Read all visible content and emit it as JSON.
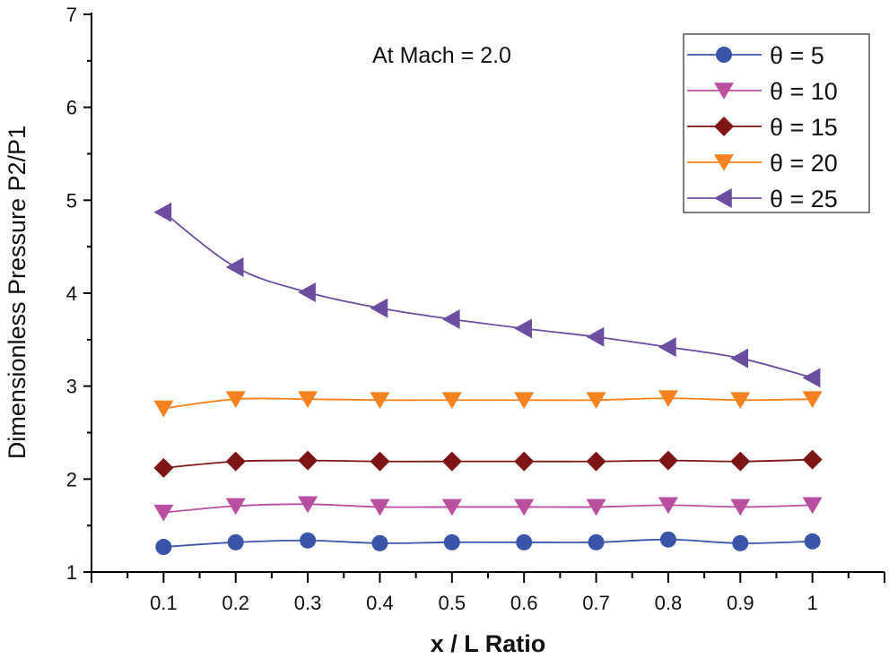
{
  "chart_data": {
    "type": "line",
    "title": "",
    "annotation": "At Mach = 2.0",
    "xlabel": "x / L Ratio",
    "ylabel": "Dimensionless Pressure P2/P1",
    "xlim": [
      0,
      1.1
    ],
    "ylim": [
      1,
      7
    ],
    "xticks": [
      "0.1",
      "0.2",
      "0.3",
      "0.4",
      "0.5",
      "0.6",
      "0.7",
      "0.8",
      "0.9",
      "1"
    ],
    "yticks": [
      "1",
      "2",
      "3",
      "4",
      "5",
      "6",
      "7"
    ],
    "grid": false,
    "legend_position": "top-right",
    "x": [
      0.1,
      0.2,
      0.3,
      0.4,
      0.5,
      0.6,
      0.7,
      0.8,
      0.9,
      1.0
    ],
    "series": [
      {
        "name": "θ = 5",
        "color": "#3a55a8",
        "marker": "circle",
        "values": [
          1.27,
          1.32,
          1.34,
          1.31,
          1.32,
          1.32,
          1.32,
          1.35,
          1.31,
          1.33
        ]
      },
      {
        "name": "θ = 10",
        "color": "#b84f9f",
        "marker": "triangle-down",
        "values": [
          1.64,
          1.71,
          1.73,
          1.7,
          1.7,
          1.7,
          1.7,
          1.72,
          1.7,
          1.72
        ]
      },
      {
        "name": "θ = 15",
        "color": "#7d1416",
        "marker": "diamond",
        "values": [
          2.12,
          2.19,
          2.2,
          2.19,
          2.19,
          2.19,
          2.19,
          2.2,
          2.19,
          2.21
        ]
      },
      {
        "name": "θ = 20",
        "color": "#f5821f",
        "marker": "triangle-down",
        "values": [
          2.76,
          2.86,
          2.86,
          2.85,
          2.85,
          2.85,
          2.85,
          2.87,
          2.85,
          2.86
        ]
      },
      {
        "name": "θ = 25",
        "color": "#6b4ea0",
        "marker": "triangle-left",
        "values": [
          4.87,
          4.28,
          4.01,
          3.84,
          3.72,
          3.62,
          3.53,
          3.42,
          3.3,
          3.09
        ]
      }
    ]
  }
}
